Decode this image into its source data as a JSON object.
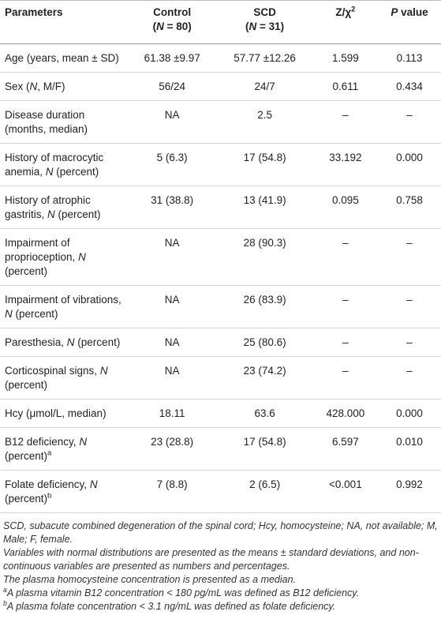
{
  "table": {
    "header": [
      "Parameters",
      [
        "Control\n(",
        {
          "italic": "N"
        },
        " = 80)"
      ],
      [
        "SCD\n(",
        {
          "italic": "N"
        },
        " = 31)"
      ],
      [
        "Z/χ",
        {
          "sup": "2"
        }
      ],
      [
        {
          "italic": "P"
        },
        " value"
      ]
    ],
    "rows": [
      [
        "Age (years, mean ± SD)",
        "61.38 ±9.97",
        "57.77 ±12.26",
        "1.599",
        "0.113"
      ],
      [
        [
          "Sex (",
          {
            "italic": "N"
          },
          ", M/F)"
        ],
        "56/24",
        "24/7",
        "0.611",
        "0.434"
      ],
      [
        "Disease duration (months, median)",
        "NA",
        "2.5",
        "–",
        "–"
      ],
      [
        [
          "History of macrocytic anemia, ",
          {
            "italic": "N"
          },
          " (percent)"
        ],
        "5 (6.3)",
        "17 (54.8)",
        "33.192",
        "0.000"
      ],
      [
        [
          "History of atrophic gastritis, ",
          {
            "italic": "N"
          },
          " (percent)"
        ],
        "31 (38.8)",
        "13 (41.9)",
        "0.095",
        "0.758"
      ],
      [
        [
          "Impairment of proprioception, ",
          {
            "italic": "N"
          },
          " (percent)"
        ],
        "NA",
        "28 (90.3)",
        "–",
        "–"
      ],
      [
        [
          "Impairment of vibrations, ",
          {
            "italic": "N"
          },
          " (percent)"
        ],
        "NA",
        "26 (83.9)",
        "–",
        "–"
      ],
      [
        [
          "Paresthesia, ",
          {
            "italic": "N"
          },
          " (percent)"
        ],
        "NA",
        "25 (80.6)",
        "–",
        "–"
      ],
      [
        [
          "Corticospinal signs, ",
          {
            "italic": "N"
          },
          " (percent)"
        ],
        "NA",
        "23 (74.2)",
        "–",
        "–"
      ],
      [
        "Hcy (μmol/L, median)",
        "18.11",
        "63.6",
        "428.000",
        "0.000"
      ],
      [
        [
          "B12 deficiency, ",
          {
            "italic": "N"
          },
          " (percent)",
          {
            "sup": "a"
          }
        ],
        "23 (28.8)",
        "17 (54.8)",
        "6.597",
        "0.010"
      ],
      [
        [
          "Folate deficiency, ",
          {
            "italic": "N"
          },
          " (percent)",
          {
            "sup": "b"
          }
        ],
        "7 (8.8)",
        "2 (6.5)",
        "<0.001",
        "0.992"
      ]
    ]
  },
  "notes": [
    "SCD, subacute combined degeneration of the spinal cord; Hcy, homocysteine; NA, not available; M, Male; F, female.",
    "Variables with normal distributions are presented as the means ± standard deviations, and non-continuous variables are presented as numbers and percentages.",
    "The plasma homocysteine concentration is presented as a median.",
    [
      {
        "sup": "a"
      },
      "A plasma vitamin B12 concentration < 180 pg/mL was defined as B12 deficiency."
    ],
    [
      {
        "sup": "b"
      },
      "A plasma folate concentration < 3.1 ng/mL was defined as folate deficiency."
    ]
  ]
}
